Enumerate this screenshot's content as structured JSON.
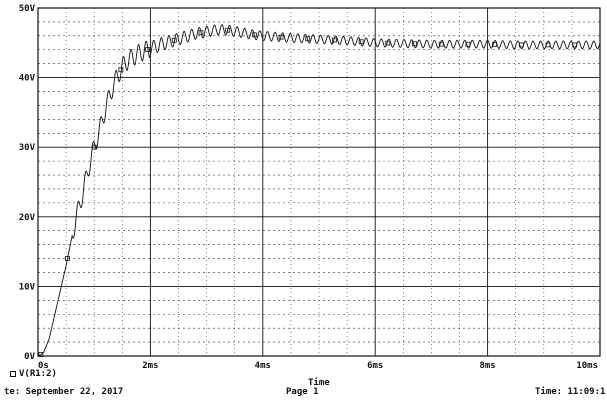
{
  "chart_data": {
    "type": "line",
    "x_ticks": [
      "0s",
      "2ms",
      "4ms",
      "6ms",
      "8ms",
      "10ms"
    ],
    "y_ticks": [
      "0V",
      "10V",
      "20V",
      "30V",
      "40V",
      "50V"
    ],
    "xlim": [
      0,
      10
    ],
    "ylim": [
      0,
      50
    ],
    "x_unit": "ms",
    "y_unit": "V",
    "xlabel": "Time",
    "grid": true,
    "series": [
      {
        "name": "V(R1:2)",
        "color": "#111111",
        "x": [
          0,
          0.05,
          0.1,
          0.2,
          0.3,
          0.4,
          0.5,
          0.6,
          0.7,
          0.8,
          0.9,
          1.0,
          1.1,
          1.2,
          1.3,
          1.4,
          1.5,
          1.6,
          1.7,
          1.8,
          2.0,
          2.2,
          2.4,
          2.6,
          2.8,
          3.0,
          3.2,
          3.4,
          3.6,
          3.8,
          4.0,
          4.5,
          5.0,
          5.5,
          6.0,
          6.5,
          7.0,
          7.5,
          8.0,
          8.5,
          9.0,
          9.5,
          10.0
        ],
        "y": [
          0,
          0.2,
          0.5,
          2.5,
          6.0,
          9.5,
          13.0,
          17.0,
          20.5,
          23.5,
          27.0,
          30.0,
          32.5,
          35.5,
          38.0,
          40.0,
          41.5,
          42.5,
          43.0,
          43.5,
          44.2,
          44.8,
          45.3,
          45.8,
          46.3,
          46.6,
          46.9,
          46.8,
          46.5,
          46.2,
          46.0,
          45.7,
          45.5,
          45.3,
          45.0,
          44.9,
          44.8,
          44.8,
          44.8,
          44.7,
          44.7,
          44.7,
          44.7
        ]
      }
    ],
    "markers_on_series": true
  },
  "footer": {
    "date": "te: September 22, 2017",
    "page": "Page 1",
    "time": "Time: 11:09:1"
  }
}
